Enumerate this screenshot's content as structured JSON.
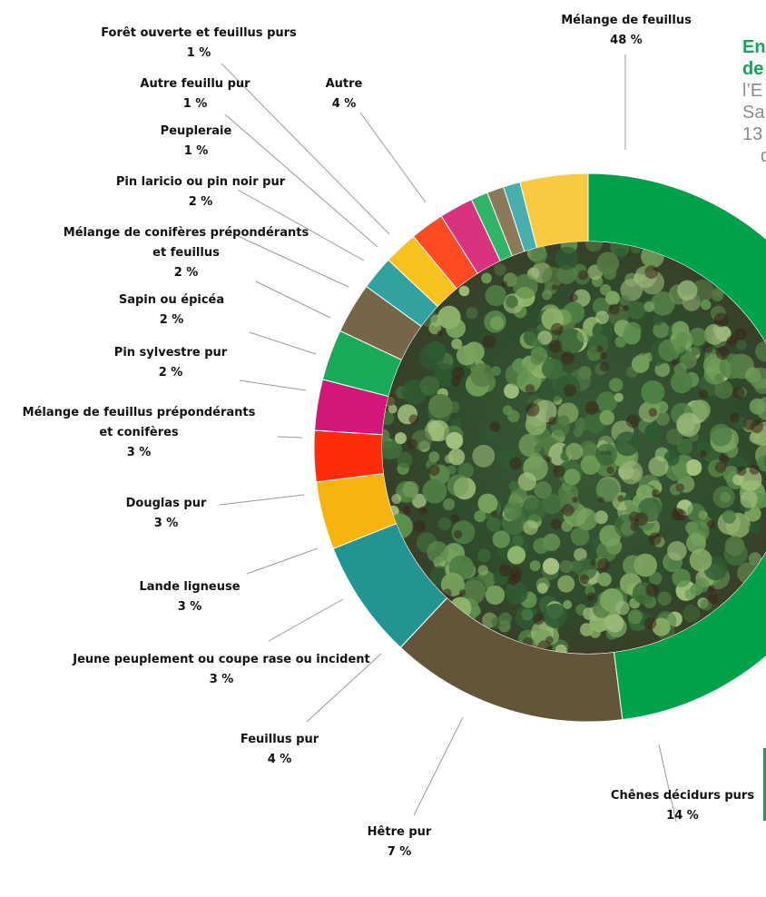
{
  "side_text": {
    "line1": "En",
    "line2": "de",
    "line3": "l’E",
    "line4": "Sa",
    "line5": "13",
    "line6": "d"
  },
  "colors": {
    "accent_green": "#16a25a",
    "center_photo": "forest-canopy-aerial"
  },
  "chart_data": {
    "type": "pie",
    "donut": true,
    "start": "top",
    "direction": "clockwise",
    "slices": [
      {
        "label": "Mélange de feuillus",
        "value": 48,
        "pct_text": "48 %",
        "color": "#00a14b"
      },
      {
        "label": "Chênes décidurs purs",
        "value": 14,
        "pct_text": "14 %",
        "color": "#62553a"
      },
      {
        "label": "Hêtre pur",
        "value": 7,
        "pct_text": "7 %",
        "color": "#229592"
      },
      {
        "label": "Feuillus pur",
        "value": 4,
        "pct_text": "4 %",
        "color": "#f6b40e"
      },
      {
        "label": "Jeune peuplement ou coupe rase ou incident",
        "value": 3,
        "pct_text": "3 %",
        "color": "#ff2c0a"
      },
      {
        "label": "Lande ligneuse",
        "value": 3,
        "pct_text": "3 %",
        "color": "#d3167a"
      },
      {
        "label": "Douglas pur",
        "value": 3,
        "pct_text": "3 %",
        "color": "#19ab5a"
      },
      {
        "label": "Mélange de feuillus prépondérants et conifères",
        "value": 3,
        "pct_text": "3 %",
        "color": "#766547"
      },
      {
        "label": "Pin sylvestre pur",
        "value": 2,
        "pct_text": "2 %",
        "color": "#31a2a0"
      },
      {
        "label": "Sapin ou épicéa",
        "value": 2,
        "pct_text": "2 %",
        "color": "#f9c21f"
      },
      {
        "label": "Mélange de conifères prépondérants et feuillus",
        "value": 2,
        "pct_text": "2 %",
        "color": "#ff4a24"
      },
      {
        "label": "Pin laricio ou pin noir pur",
        "value": 2,
        "pct_text": "2 %",
        "color": "#d9327e"
      },
      {
        "label": "Peupleraie",
        "value": 1,
        "pct_text": "1 %",
        "color": "#30b467"
      },
      {
        "label": "Autre feuillu pur",
        "value": 1,
        "pct_text": "1 %",
        "color": "#8a7a5a"
      },
      {
        "label": "Forêt ouverte et feuillus purs",
        "value": 1,
        "pct_text": "1 %",
        "color": "#48adad"
      },
      {
        "label": "Autre",
        "value": 4,
        "pct_text": "4 %",
        "color": "#f9c940"
      }
    ]
  }
}
